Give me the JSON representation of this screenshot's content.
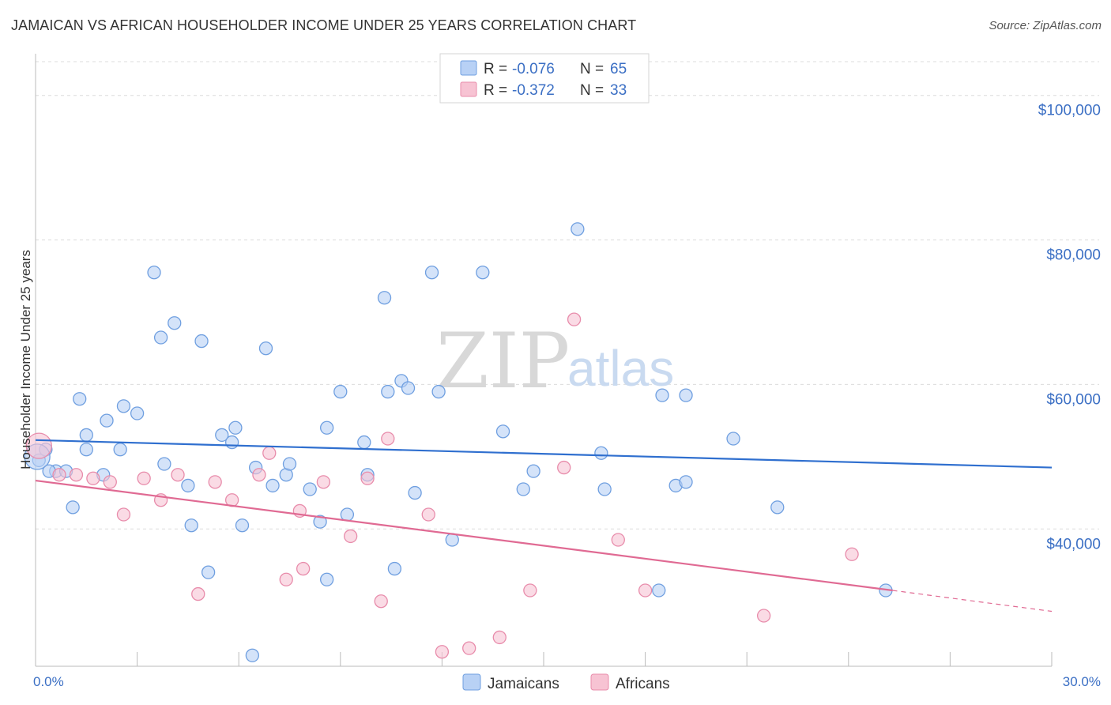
{
  "title": "JAMAICAN VS AFRICAN HOUSEHOLDER INCOME UNDER 25 YEARS CORRELATION CHART",
  "source": "Source: ZipAtlas.com",
  "watermark": {
    "zip": "ZIP",
    "atlas": "atlas"
  },
  "colors": {
    "jamaicans_fill": "#b8d1f5",
    "jamaicans_stroke": "#6f9fe0",
    "jamaicans_line": "#2f6fcf",
    "africans_fill": "#f7c3d3",
    "africans_stroke": "#e88cab",
    "africans_line": "#e06a93",
    "grid": "#dcdcdc",
    "tick_text": "#3b6fc4"
  },
  "legend": {
    "rows": [
      {
        "r_label": "R =",
        "r_value": "-0.076",
        "n_label": "N =",
        "n_value": "65"
      },
      {
        "r_label": "R =",
        "r_value": "-0.372",
        "n_label": "N =",
        "n_value": "33"
      }
    ]
  },
  "chart_data": {
    "type": "scatter",
    "title": "JAMAICAN VS AFRICAN HOUSEHOLDER INCOME UNDER 25 YEARS CORRELATION CHART",
    "xlabel": "",
    "ylabel": "Householder Income Under 25 years",
    "xlim": [
      0,
      30
    ],
    "ylim": [
      21000,
      105000
    ],
    "x_tick_labels": [
      "0.0%",
      "30.0%"
    ],
    "y_ticks": [
      40000,
      60000,
      80000,
      100000
    ],
    "y_tick_labels": [
      "$40,000",
      "$60,000",
      "$80,000",
      "$100,000"
    ],
    "grid": true,
    "legend_position": "bottom-center",
    "series": [
      {
        "name": "Jamaicans",
        "R": -0.076,
        "N": 65,
        "trend": {
          "x": [
            0,
            30
          ],
          "y": [
            52300,
            48500
          ]
        },
        "points": [
          [
            0.1,
            49500
          ],
          [
            0.3,
            51000
          ],
          [
            0.6,
            48000
          ],
          [
            0.9,
            48000
          ],
          [
            1.1,
            43000
          ],
          [
            1.3,
            58000
          ],
          [
            1.5,
            51000
          ],
          [
            1.5,
            53000
          ],
          [
            2.0,
            47500
          ],
          [
            2.1,
            55000
          ],
          [
            2.6,
            57000
          ],
          [
            2.5,
            51000
          ],
          [
            3.0,
            56000
          ],
          [
            3.5,
            75500
          ],
          [
            3.7,
            66500
          ],
          [
            3.8,
            49000
          ],
          [
            4.1,
            68500
          ],
          [
            4.5,
            46000
          ],
          [
            4.6,
            40500
          ],
          [
            4.9,
            66000
          ],
          [
            5.1,
            34000
          ],
          [
            5.5,
            53000
          ],
          [
            5.8,
            52000
          ],
          [
            5.9,
            54000
          ],
          [
            6.1,
            40500
          ],
          [
            6.4,
            22500
          ],
          [
            6.5,
            48500
          ],
          [
            6.8,
            65000
          ],
          [
            7.0,
            46000
          ],
          [
            7.4,
            47500
          ],
          [
            7.5,
            49000
          ],
          [
            8.1,
            45500
          ],
          [
            8.4,
            41000
          ],
          [
            8.6,
            33000
          ],
          [
            8.6,
            54000
          ],
          [
            9.0,
            59000
          ],
          [
            9.2,
            42000
          ],
          [
            9.7,
            52000
          ],
          [
            9.8,
            47500
          ],
          [
            10.3,
            72000
          ],
          [
            10.4,
            59000
          ],
          [
            10.6,
            34500
          ],
          [
            10.8,
            60500
          ],
          [
            11.0,
            59500
          ],
          [
            11.2,
            45000
          ],
          [
            11.7,
            75500
          ],
          [
            11.9,
            59000
          ],
          [
            12.3,
            38500
          ],
          [
            13.2,
            75500
          ],
          [
            13.8,
            53500
          ],
          [
            14.4,
            45500
          ],
          [
            14.7,
            48000
          ],
          [
            16.0,
            81500
          ],
          [
            16.7,
            50500
          ],
          [
            16.8,
            45500
          ],
          [
            18.4,
            31500
          ],
          [
            18.5,
            58500
          ],
          [
            18.9,
            46000
          ],
          [
            19.2,
            46500
          ],
          [
            19.2,
            58500
          ],
          [
            20.6,
            52500
          ],
          [
            21.9,
            43000
          ],
          [
            25.1,
            31500
          ],
          [
            0.05,
            50000
          ],
          [
            0.4,
            48000
          ]
        ]
      },
      {
        "name": "Africans",
        "R": -0.372,
        "N": 33,
        "trend": {
          "x": [
            0,
            25.3
          ],
          "y": [
            46700,
            31500
          ],
          "dashed_to": [
            30,
            28600
          ]
        },
        "points": [
          [
            0.1,
            51500
          ],
          [
            0.7,
            47500
          ],
          [
            1.2,
            47500
          ],
          [
            1.7,
            47000
          ],
          [
            2.2,
            46500
          ],
          [
            2.6,
            42000
          ],
          [
            3.2,
            47000
          ],
          [
            3.7,
            44000
          ],
          [
            4.2,
            47500
          ],
          [
            4.8,
            31000
          ],
          [
            5.3,
            46500
          ],
          [
            5.8,
            44000
          ],
          [
            6.6,
            47500
          ],
          [
            6.9,
            50500
          ],
          [
            7.4,
            33000
          ],
          [
            7.8,
            42500
          ],
          [
            7.9,
            34500
          ],
          [
            8.5,
            46500
          ],
          [
            9.3,
            39000
          ],
          [
            9.8,
            47000
          ],
          [
            10.2,
            30000
          ],
          [
            10.4,
            52500
          ],
          [
            11.6,
            42000
          ],
          [
            12.0,
            23000
          ],
          [
            12.8,
            23500
          ],
          [
            13.7,
            25000
          ],
          [
            14.6,
            31500
          ],
          [
            15.6,
            48500
          ],
          [
            15.9,
            69000
          ],
          [
            17.2,
            38500
          ],
          [
            18.0,
            31500
          ],
          [
            21.5,
            28000
          ],
          [
            24.1,
            36500
          ]
        ]
      }
    ]
  }
}
